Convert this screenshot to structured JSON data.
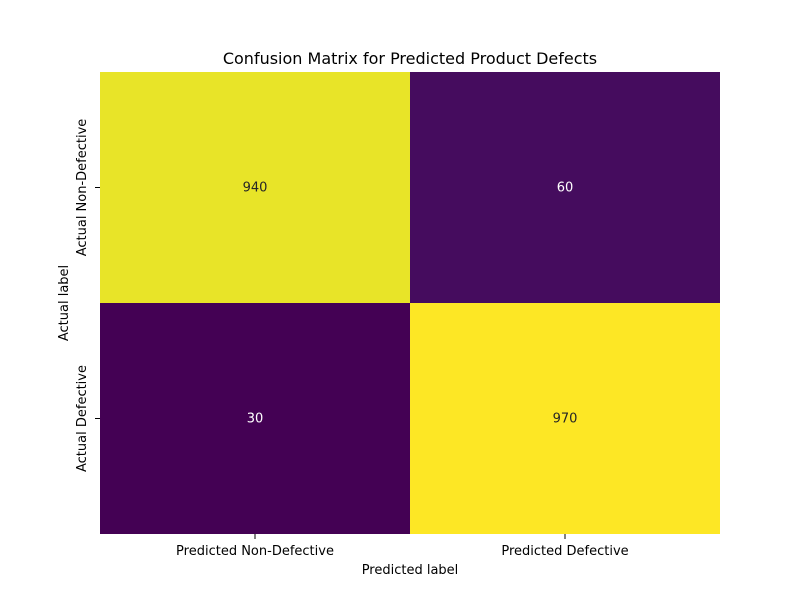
{
  "chart_data": {
    "type": "heatmap",
    "title": "Confusion Matrix for Predicted Product Defects",
    "xlabel": "Predicted label",
    "ylabel": "Actual label",
    "x_categories": [
      "Predicted Non-Defective",
      "Predicted Defective"
    ],
    "y_categories": [
      "Actual Non-Defective",
      "Actual Defective"
    ],
    "values": [
      [
        940,
        60
      ],
      [
        30,
        970
      ]
    ],
    "colormap": "viridis",
    "value_range": [
      30,
      970
    ],
    "colorbar": false,
    "annotation_colors": {
      "on_light": "#262626",
      "on_dark": "#ffffff"
    }
  }
}
